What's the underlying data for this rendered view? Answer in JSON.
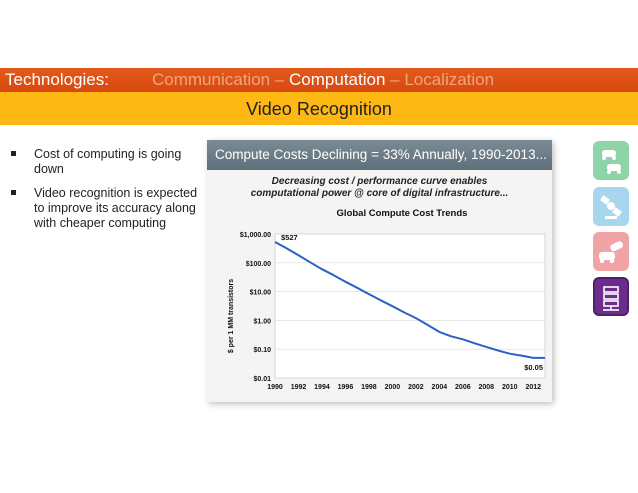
{
  "header": {
    "label": "Technologies:",
    "segments": [
      "Communication",
      " – ",
      "Computation",
      " – ",
      "Localization"
    ],
    "highlight_index": 2
  },
  "subheader": "Video Recognition",
  "bullets": [
    "Cost of computing is going down",
    "Video recognition is expected to improve its accuracy along with cheaper computing"
  ],
  "slide": {
    "title": "Compute Costs Declining = 33% Annually, 1990-2013...",
    "subtitle_line1": "Decreasing cost / performance curve enables",
    "subtitle_line2": "computational power @ core of digital infrastructure..."
  },
  "chart_data": {
    "type": "line",
    "title": "Global Compute Cost Trends",
    "ylabel": "$ per 1 MM transistors",
    "yscale": "log",
    "yticks": [
      "$1,000.00",
      "$100.00",
      "$10.00",
      "$1.00",
      "$0.10",
      "$0.01"
    ],
    "ytick_values": [
      1000,
      100,
      10,
      1,
      0.1,
      0.01
    ],
    "xticks": [
      "1990",
      "1992",
      "1994",
      "1996",
      "1998",
      "2000",
      "2002",
      "2004",
      "2006",
      "2008",
      "2010",
      "2012"
    ],
    "xlim": [
      1990,
      2013
    ],
    "ylim": [
      0.01,
      1000
    ],
    "grid": true,
    "series": [
      {
        "x": [
          1990,
          1991,
          1992,
          1993,
          1994,
          1995,
          1996,
          1997,
          1998,
          1999,
          2000,
          2001,
          2002,
          2003,
          2004,
          2005,
          2006,
          2007,
          2008,
          2009,
          2010,
          2011,
          2012,
          2013
        ],
        "values": [
          527,
          315,
          182,
          104,
          60,
          37,
          22,
          13.5,
          8.2,
          5,
          3.1,
          1.9,
          1.2,
          0.7,
          0.4,
          0.28,
          0.22,
          0.16,
          0.12,
          0.09,
          0.07,
          0.06,
          0.05,
          0.05
        ],
        "color": "#2a62c6"
      }
    ],
    "annotations": [
      {
        "text": "$527",
        "x": 1990,
        "y": 527
      },
      {
        "text": "$0.05",
        "x": 2013,
        "y": 0.05
      }
    ]
  },
  "icons": [
    {
      "name": "connected-cars-icon",
      "color": "#8fd4a8"
    },
    {
      "name": "satellite-icon",
      "color": "#a9d6ef"
    },
    {
      "name": "car-crash-icon",
      "color": "#f0a4a6"
    },
    {
      "name": "server-icon",
      "color": "#6b2c8c"
    }
  ]
}
